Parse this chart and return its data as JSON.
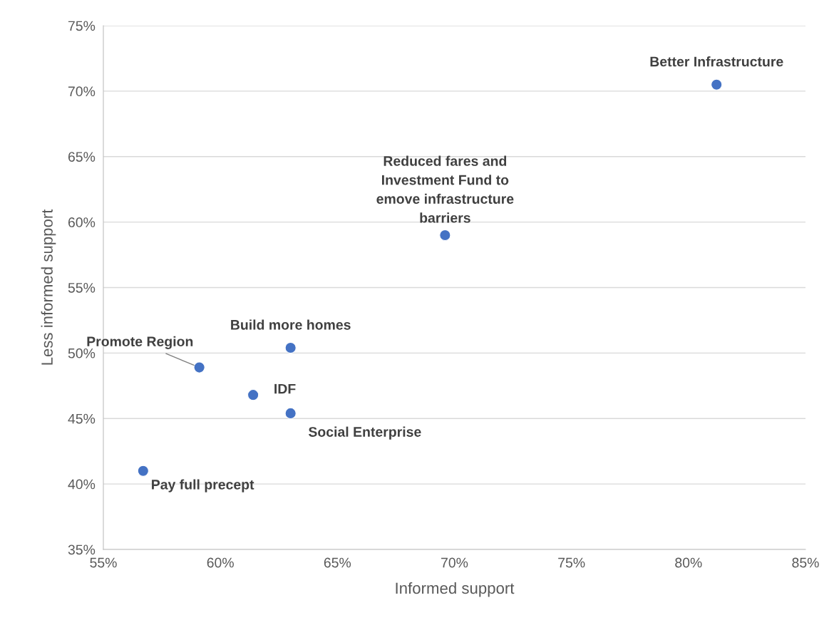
{
  "chart_data": {
    "type": "scatter",
    "xlabel": "Informed support",
    "ylabel": "Less informed support",
    "series": [
      {
        "color": "#4472c4",
        "x": [
          81.2,
          69.6,
          63.0,
          59.1,
          61.4,
          63.0,
          56.7
        ],
        "values": [
          70.5,
          59.0,
          50.4,
          48.9,
          46.8,
          45.4,
          41.0
        ]
      }
    ],
    "annotations": [
      {
        "text": "Better Infrastructure",
        "x": 81.2,
        "y": 70.5
      },
      {
        "text": "Reduced fares and\nInvestment Fund to\nemove infrastructure\nbarriers",
        "x": 69.6,
        "y": 59.0
      },
      {
        "text": "Build more homes",
        "x": 63.0,
        "y": 50.4
      },
      {
        "text": "Promote Region",
        "x": 59.1,
        "y": 48.9
      },
      {
        "text": "IDF",
        "x": 61.4,
        "y": 46.8
      },
      {
        "text": "Social Enterprise",
        "x": 63.0,
        "y": 45.4
      },
      {
        "text": "Pay full precept",
        "x": 56.7,
        "y": 41.0
      }
    ],
    "xlim": [
      55,
      85
    ],
    "ylim": [
      35,
      75
    ],
    "xticks": [
      {
        "value": 55,
        "label": "55%"
      },
      {
        "value": 60,
        "label": "60%"
      },
      {
        "value": 65,
        "label": "65%"
      },
      {
        "value": 70,
        "label": "70%"
      },
      {
        "value": 75,
        "label": "75%"
      },
      {
        "value": 80,
        "label": "80%"
      },
      {
        "value": 85,
        "label": "85%"
      }
    ],
    "yticks": [
      {
        "value": 35,
        "label": "35%"
      },
      {
        "value": 40,
        "label": "40%"
      },
      {
        "value": 45,
        "label": "45%"
      },
      {
        "value": 50,
        "label": "50%"
      },
      {
        "value": 55,
        "label": "55%"
      },
      {
        "value": 60,
        "label": "60%"
      },
      {
        "value": 65,
        "label": "65%"
      },
      {
        "value": 70,
        "label": "70%"
      },
      {
        "value": 75,
        "label": "75%"
      }
    ],
    "grid": "y",
    "marker": "circle"
  }
}
